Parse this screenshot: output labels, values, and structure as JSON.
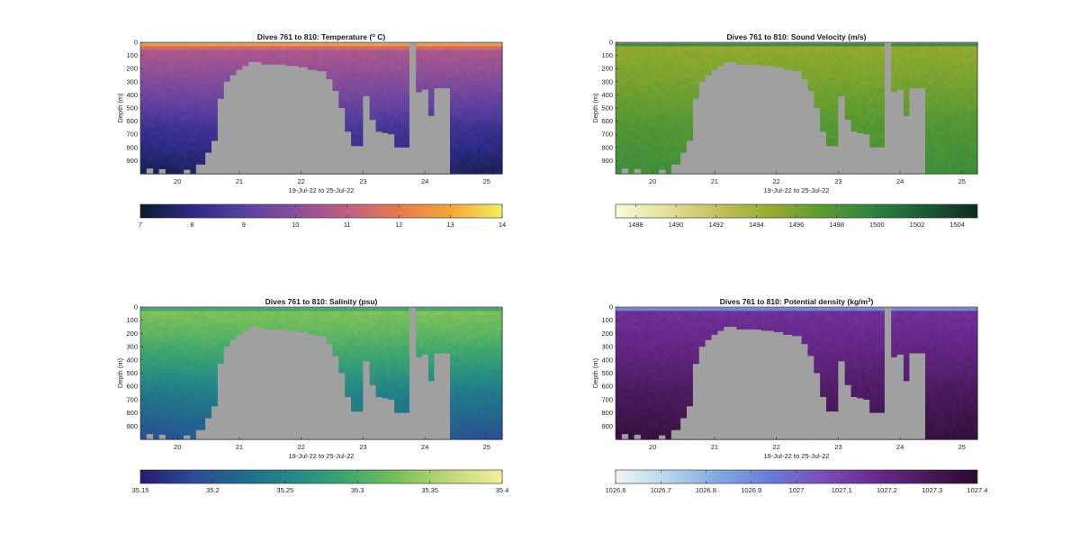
{
  "figure": {
    "xlabel": "19-Jul-22 to 25-Jul-22",
    "ylabel": "Depth (m)",
    "land_color": "#a0a0a0"
  },
  "chart_data": [
    {
      "type": "heatmap",
      "title": "Dives 761 to 810: Temperature (",
      "title_sup": "o",
      "title_end": " C)",
      "xlabel": "19-Jul-22 to 25-Jul-22",
      "ylabel": "Depth (m)",
      "xlim": [
        19.4,
        25.25
      ],
      "ylim": [
        0,
        1000
      ],
      "xticks": [
        20,
        21,
        22,
        23,
        24,
        25
      ],
      "yticks": [
        0,
        100,
        200,
        300,
        400,
        500,
        600,
        700,
        800,
        900
      ],
      "colormap": [
        "#0a1a2e",
        "#2d2a85",
        "#5a3fa0",
        "#8a4e9a",
        "#c05f83",
        "#e9794f",
        "#f5a53a",
        "#f2f05a"
      ],
      "colorbar": {
        "ticks": [
          7,
          8,
          9,
          10,
          11,
          12,
          13,
          14
        ],
        "range": [
          7,
          14
        ]
      },
      "surface": {
        "top": 13.5,
        "base": 10.6,
        "mid": 9.2,
        "bottom": 7.4,
        "mix_depth": 60
      },
      "reversed": false
    },
    {
      "type": "heatmap",
      "title": "Dives 761 to 810: Sound Velocity (m/s)",
      "xlabel": "19-Jul-22 to 25-Jul-22",
      "ylabel": "Depth (m)",
      "xlim": [
        19.4,
        25.25
      ],
      "ylim": [
        0,
        1000
      ],
      "xticks": [
        20,
        21,
        22,
        23,
        24,
        25
      ],
      "yticks": [
        0,
        100,
        200,
        300,
        400,
        500,
        600,
        700,
        800,
        900
      ],
      "colormap": [
        "#fdfbd6",
        "#e3df9a",
        "#c2c15a",
        "#95ab2e",
        "#5c9a32",
        "#2b8341",
        "#1b5a36",
        "#0f2b1f"
      ],
      "colorbar": {
        "ticks": [
          1488,
          1490,
          1492,
          1494,
          1496,
          1498,
          1500,
          1502,
          1504
        ],
        "range": [
          1487,
          1505
        ]
      },
      "surface": {
        "top": 1501.5,
        "base": 1495.0,
        "mid": 1497.0,
        "bottom": 1498.8,
        "mix_depth": 40
      },
      "reversed": false
    },
    {
      "type": "heatmap",
      "title": "Dives 761 to 810: Salinity (psu)",
      "xlabel": "19-Jul-22 to 25-Jul-22",
      "ylabel": "Depth (m)",
      "xlim": [
        19.4,
        25.25
      ],
      "ylim": [
        0,
        1000
      ],
      "xticks": [
        20,
        21,
        22,
        23,
        24,
        25
      ],
      "yticks": [
        0,
        100,
        200,
        300,
        400,
        500,
        600,
        700,
        800,
        900
      ],
      "colormap": [
        "#2a1a6e",
        "#2c4a94",
        "#226b8c",
        "#258a86",
        "#3fa66e",
        "#79c05a",
        "#c2d87a",
        "#f6ec9e"
      ],
      "colorbar": {
        "ticks": [
          35.15,
          35.2,
          35.25,
          35.3,
          35.35,
          35.4
        ],
        "range": [
          35.15,
          35.4
        ]
      },
      "surface": {
        "top": 35.27,
        "base": 35.33,
        "mid": 35.28,
        "bottom": 35.19,
        "mix_depth": 40
      },
      "reversed": false
    },
    {
      "type": "heatmap",
      "title": "Dives 761 to 810: Potential density (kg/m",
      "title_sup": "3",
      "title_end": ")",
      "xlabel": "19-Jul-22 to 25-Jul-22",
      "ylabel": "Depth (m)",
      "xlim": [
        19.4,
        25.25
      ],
      "ylim": [
        0,
        1000
      ],
      "xticks": [
        20,
        21,
        22,
        23,
        24,
        25
      ],
      "yticks": [
        0,
        100,
        200,
        300,
        400,
        500,
        600,
        700,
        800,
        900
      ],
      "colormap": [
        "#edf6f7",
        "#b8d6ea",
        "#7fa9e0",
        "#6b7ad6",
        "#7a4fb8",
        "#6a2a8f",
        "#4a1a5c",
        "#2a0a2a"
      ],
      "colorbar": {
        "ticks": [
          1026.6,
          1026.7,
          1026.8,
          1026.9,
          1027,
          1027.1,
          1027.2,
          1027.3,
          1027.4
        ],
        "range": [
          1026.6,
          1027.4
        ]
      },
      "surface": {
        "top": 1026.75,
        "base": 1027.15,
        "mid": 1027.22,
        "bottom": 1027.36,
        "mix_depth": 35
      },
      "reversed": false
    }
  ]
}
